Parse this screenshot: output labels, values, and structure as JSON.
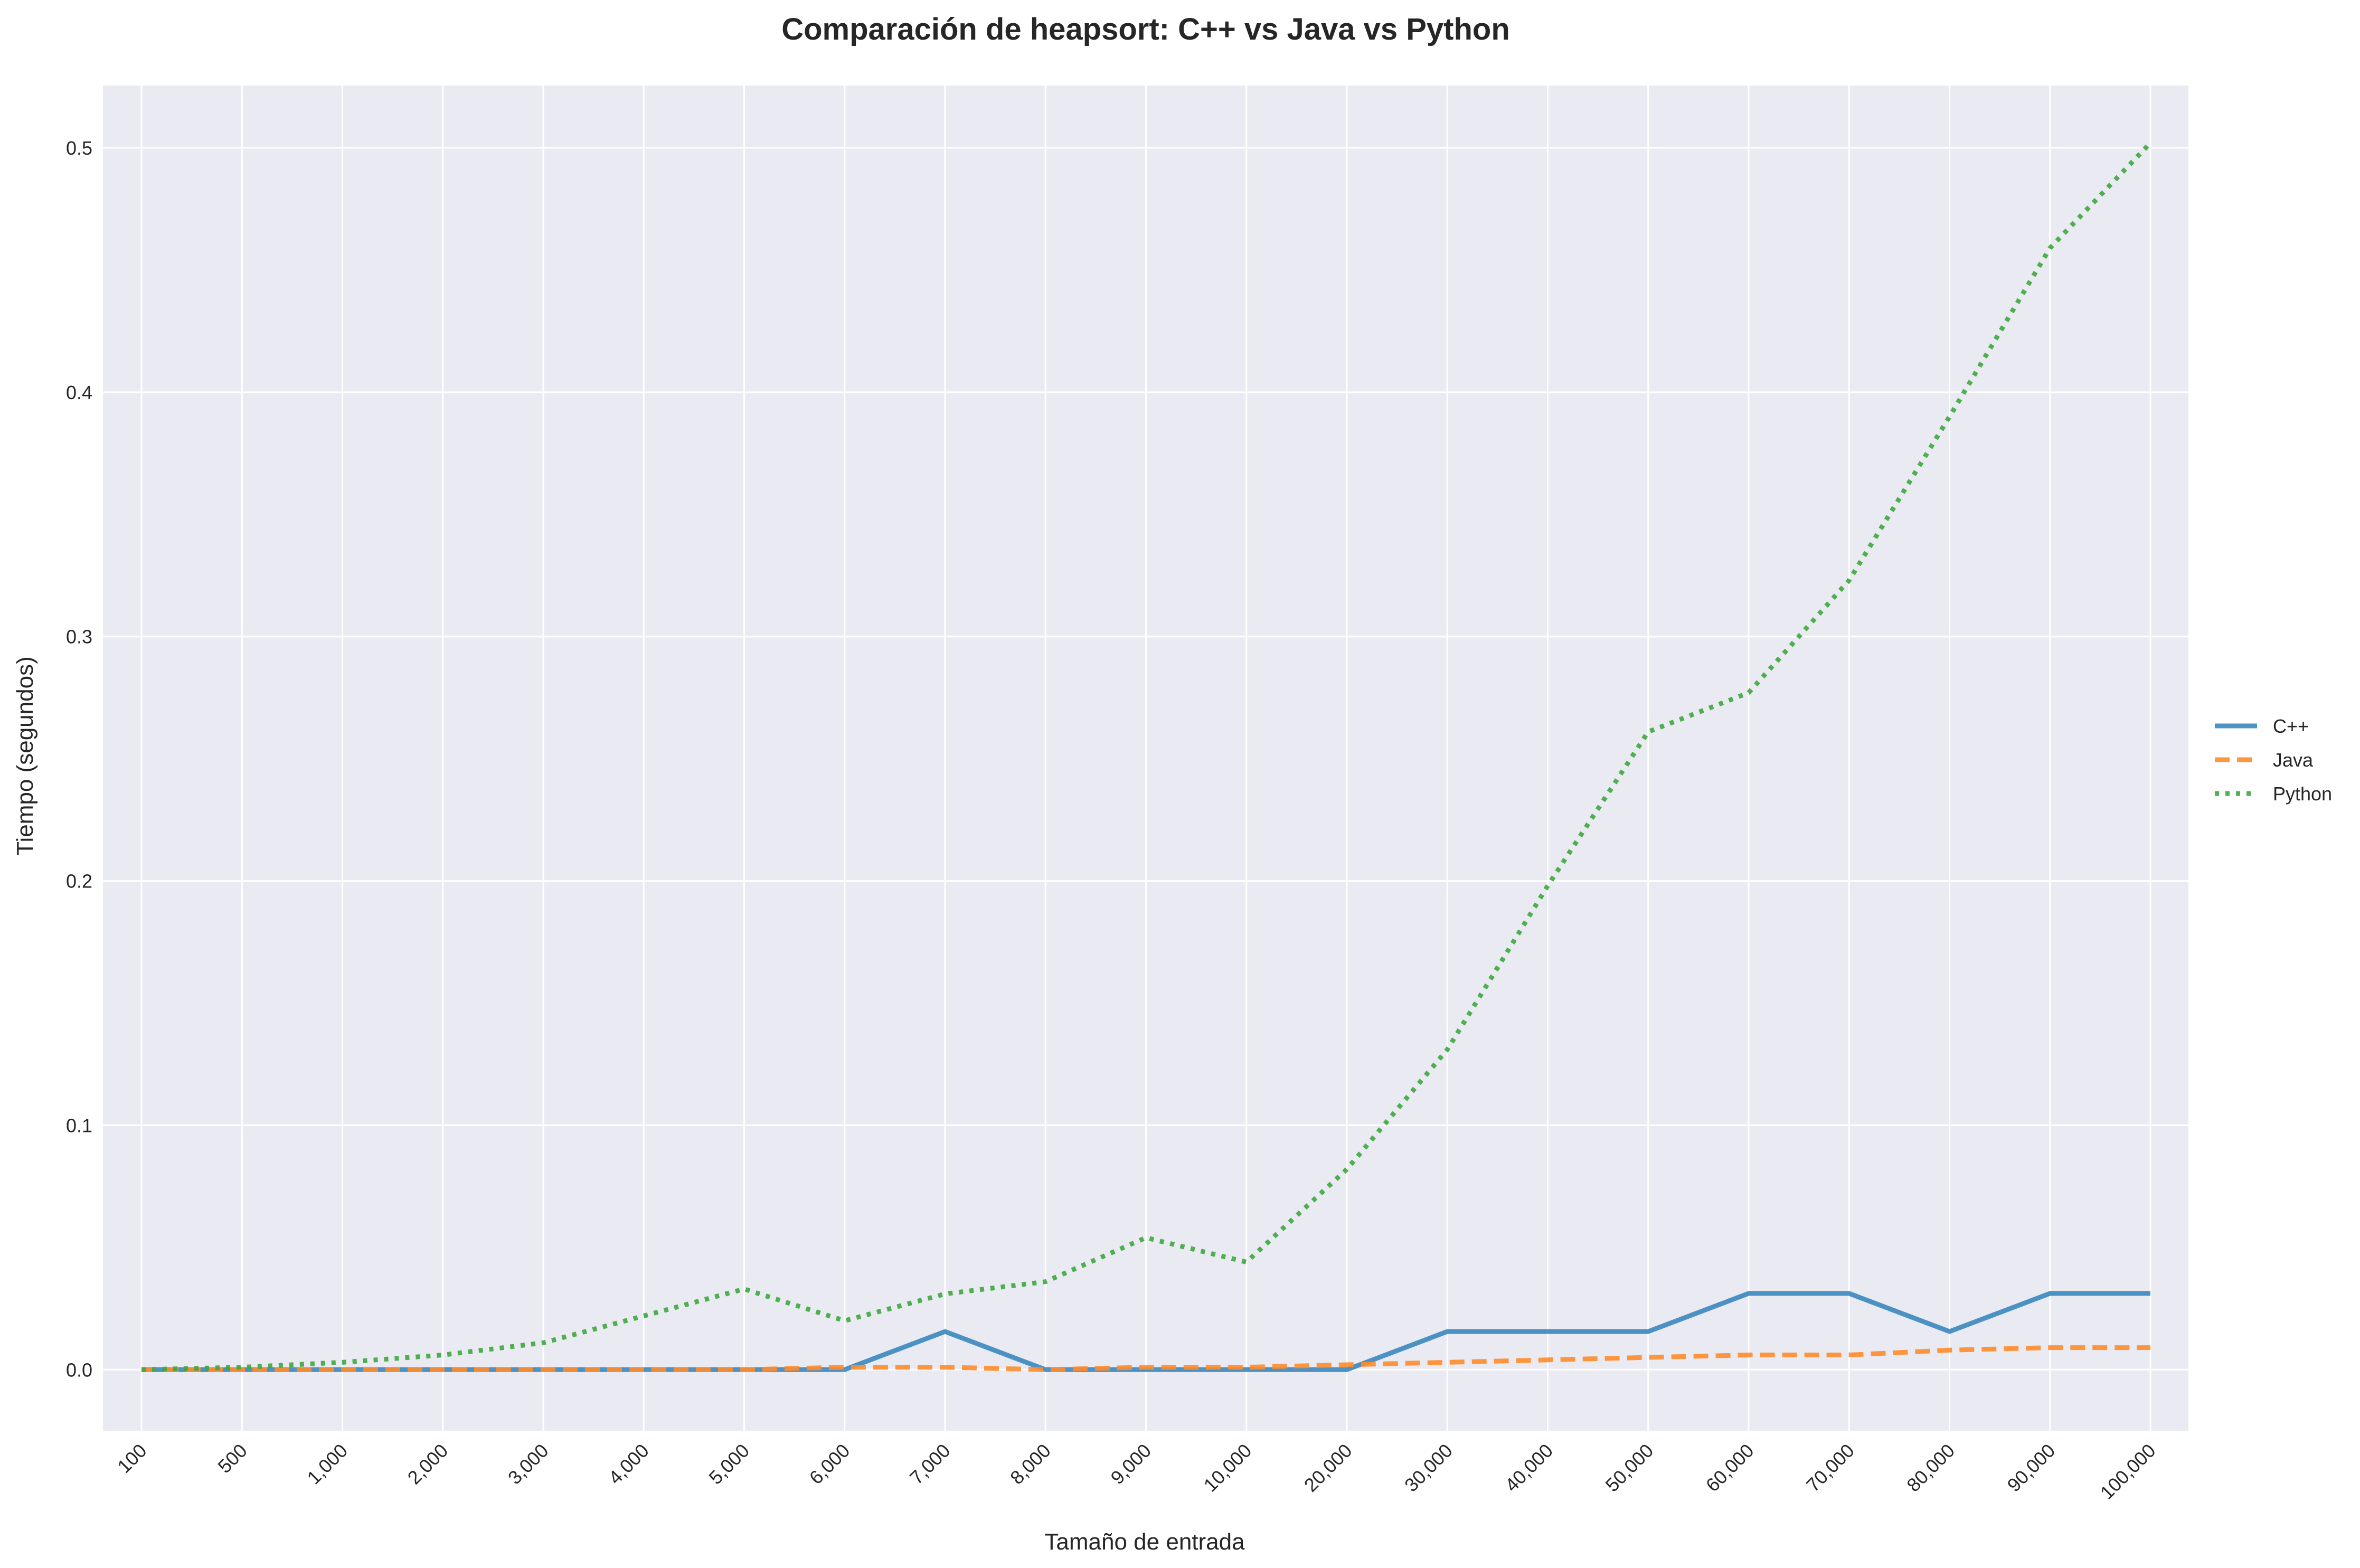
{
  "chart_data": {
    "type": "line",
    "title": "Comparación de heapsort: C++ vs Java vs Python",
    "xlabel": "Tamaño de entrada",
    "ylabel": "Tiempo (segundos)",
    "categories": [
      "100",
      "500",
      "1,000",
      "2,000",
      "3,000",
      "4,000",
      "5,000",
      "6,000",
      "7,000",
      "8,000",
      "9,000",
      "10,000",
      "20,000",
      "30,000",
      "40,000",
      "50,000",
      "60,000",
      "70,000",
      "80,000",
      "90,000",
      "100,000"
    ],
    "ylim": [
      -0.025,
      0.5255
    ],
    "yticks": [
      0.0,
      0.1,
      0.2,
      0.3,
      0.4,
      0.5
    ],
    "ytick_labels": [
      "0.0",
      "0.1",
      "0.2",
      "0.3",
      "0.4",
      "0.5"
    ],
    "grid": true,
    "legend_position": "right",
    "series": [
      {
        "name": "C++",
        "color": "#3a87be",
        "style": "solid",
        "values": [
          0,
          0,
          0,
          0,
          0,
          0,
          0,
          0,
          0.0156,
          0,
          0,
          0,
          0,
          0.0156,
          0.0156,
          0.0156,
          0.0312,
          0.0312,
          0.0156,
          0.0312,
          0.0312
        ]
      },
      {
        "name": "Java",
        "color": "#ff8c2b",
        "style": "dashed",
        "values": [
          0,
          0,
          0,
          0,
          0,
          0,
          0,
          0.001,
          0.001,
          0,
          0.001,
          0.001,
          0.002,
          0.003,
          0.004,
          0.005,
          0.006,
          0.006,
          0.008,
          0.009,
          0.009
        ]
      },
      {
        "name": "Python",
        "color": "#3ca83c",
        "style": "dotted",
        "values": [
          0,
          0.001,
          0.003,
          0.006,
          0.011,
          0.022,
          0.033,
          0.02,
          0.031,
          0.036,
          0.054,
          0.044,
          0.082,
          0.131,
          0.198,
          0.261,
          0.277,
          0.323,
          0.39,
          0.459,
          0.502
        ]
      }
    ]
  }
}
